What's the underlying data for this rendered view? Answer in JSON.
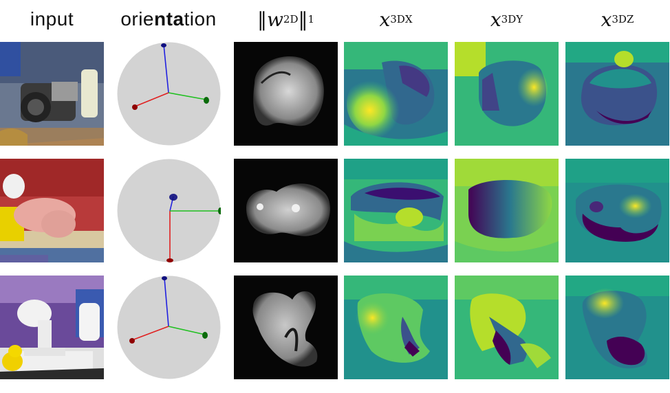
{
  "headers": {
    "input": "input",
    "orientation_pre": "orie",
    "orientation_bold": "nta",
    "orientation_post": "tion",
    "norm": "‖w",
    "norm_sup": "2D",
    "norm_end": "‖",
    "norm_sub": "1",
    "x": "x",
    "sup3d": "3D",
    "subX": "X",
    "subY": "Y",
    "subZ": "Z"
  },
  "rows": [
    {
      "input": "camera-scene",
      "orientation": "sphere-axes"
    },
    {
      "input": "pig-toy-scene",
      "orientation": "sphere-axes"
    },
    {
      "input": "lamp-duck-scene",
      "orientation": "sphere-axes"
    }
  ],
  "colors": {
    "axis_x": "#e02020",
    "axis_y": "#20c020",
    "axis_z": "#2020e0",
    "sphere": "#d3d3d3",
    "viridis_low": "#440154",
    "viridis_mid": "#21918c",
    "viridis_high": "#fde725"
  }
}
